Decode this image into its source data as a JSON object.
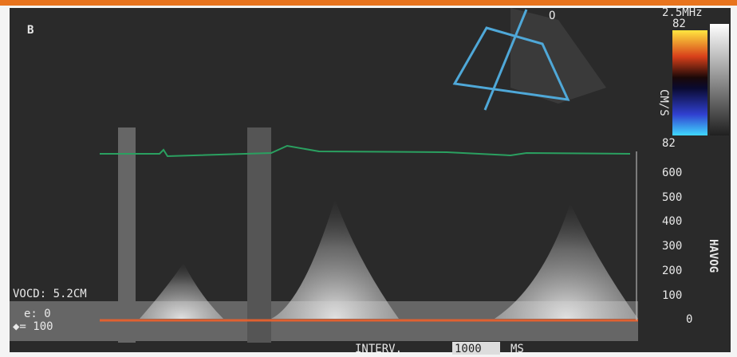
{
  "header": {
    "label": "B",
    "marker": "O"
  },
  "settings": {
    "frequency": "2.5MHz",
    "color_top": "82",
    "color_unit": "CM/S",
    "color_bottom": "82"
  },
  "scale": {
    "ticks": [
      "600",
      "500",
      "400",
      "300",
      "200",
      "100",
      "0"
    ],
    "side_label": "HAVOG"
  },
  "overlay": {
    "depth": "VOCD: 5.2CM",
    "gain": "e: 0",
    "filter": "◆= 100",
    "interval_label": "INTERV.",
    "interval_value": "1000",
    "interval_unit": "MS"
  }
}
